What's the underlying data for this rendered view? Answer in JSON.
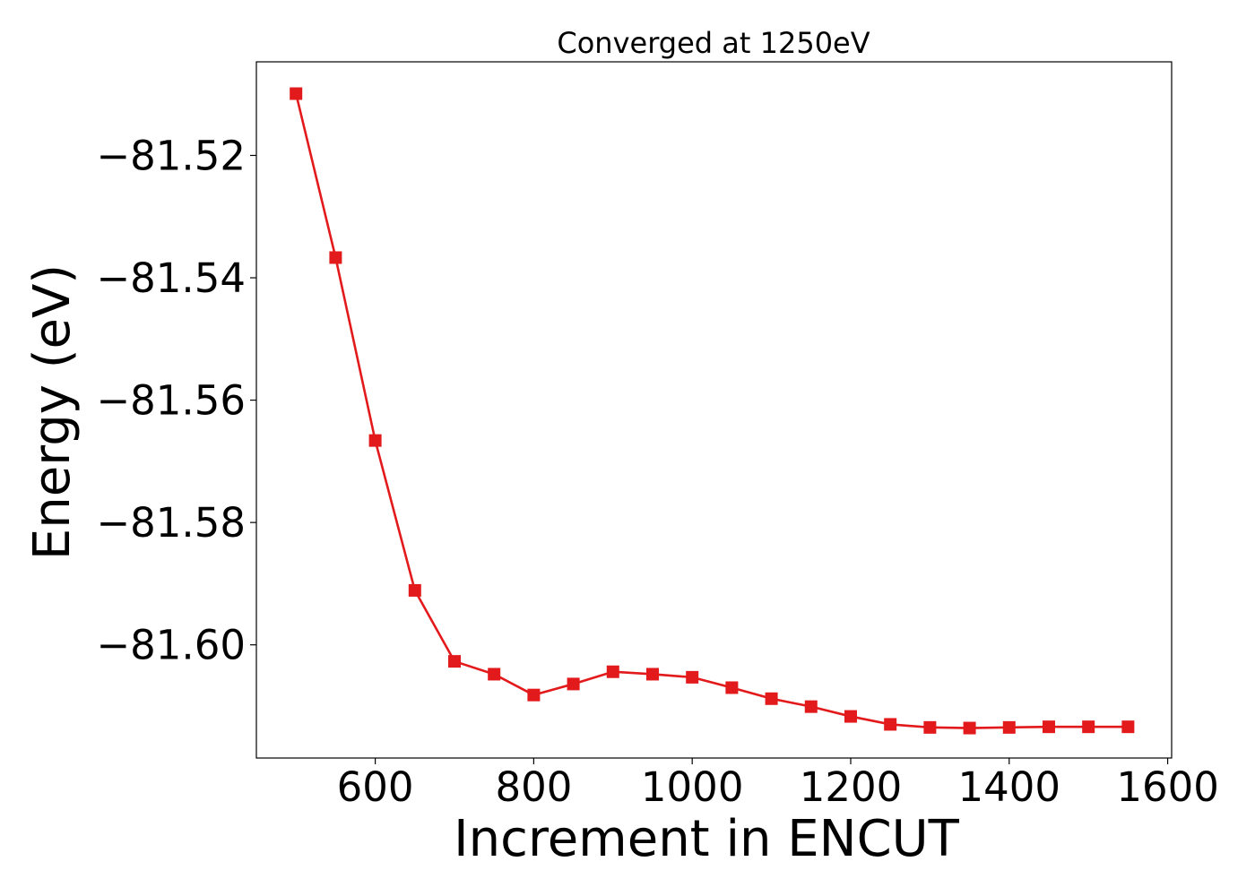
{
  "chart_data": {
    "type": "line",
    "title": "Converged at 1250eV",
    "xlabel": "Increment in ENCUT",
    "ylabel": "Energy (eV)",
    "xlim": [
      450,
      1605
    ],
    "ylim": [
      -81.6185,
      -81.5047
    ],
    "xticks": [
      600,
      800,
      1000,
      1200,
      1400,
      1600
    ],
    "yticks": [
      -81.52,
      -81.54,
      -81.56,
      -81.58,
      -81.6
    ],
    "ytick_labels": [
      "−81.52",
      "−81.54",
      "−81.56",
      "−81.58",
      "−81.60"
    ],
    "grid": false,
    "marker": "square",
    "color": "#e31a1c",
    "series": [
      {
        "x": [
          500,
          550,
          600,
          650,
          700,
          750,
          800,
          850,
          900,
          950,
          1000,
          1050,
          1100,
          1150,
          1200,
          1250,
          1300,
          1350,
          1400,
          1450,
          1500,
          1550
        ],
        "y": [
          -81.5099,
          -81.5367,
          -81.5666,
          -81.5911,
          -81.6027,
          -81.6048,
          -81.6082,
          -81.6064,
          -81.6044,
          -81.6048,
          -81.6053,
          -81.607,
          -81.6088,
          -81.6101,
          -81.6117,
          -81.613,
          -81.6135,
          -81.6136,
          -81.6135,
          -81.6134,
          -81.6134,
          -81.6134
        ]
      }
    ]
  }
}
